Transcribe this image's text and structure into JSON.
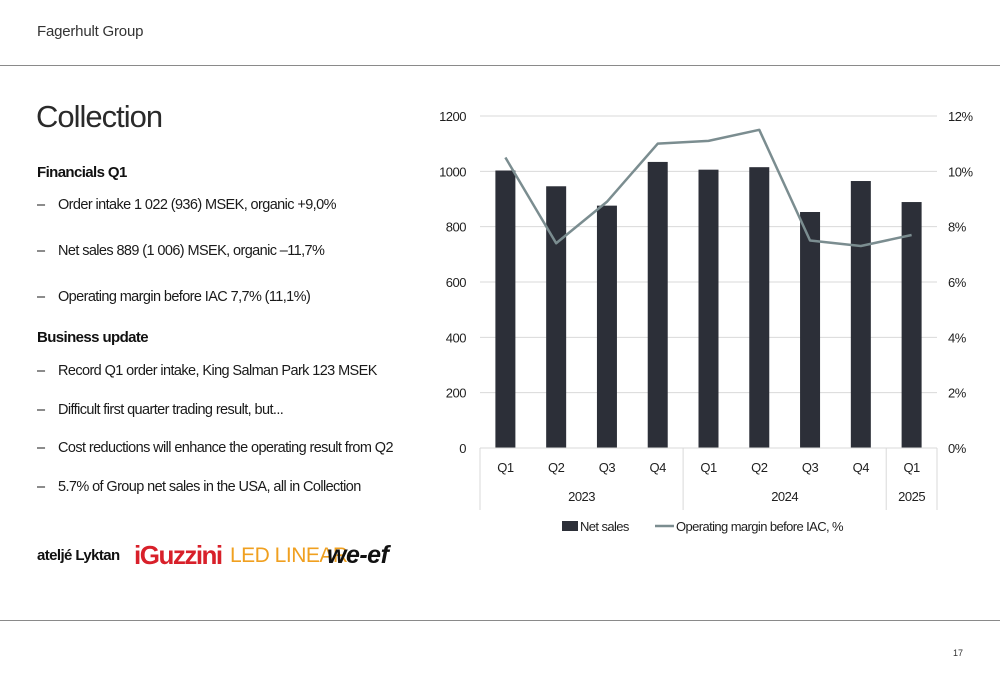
{
  "header": {
    "company": "Fagerhult Group"
  },
  "page_number": "17",
  "title": "Collection",
  "financials": {
    "heading": "Financials Q1",
    "items": [
      "Order intake 1 022 (936) MSEK, organic +9,0%",
      "Net sales 889 (1 006) MSEK, organic –11,7%",
      "Operating margin before IAC 7,7% (11,1%)"
    ]
  },
  "business_update": {
    "heading": "Business update",
    "items": [
      "Record Q1 order intake, King Salman Park 123 MSEK",
      "Difficult first quarter trading result, but...",
      "Cost reductions will enhance the operating result from Q2",
      "5.7% of Group net sales in the USA, all in Collection"
    ]
  },
  "bullet_dash": "–",
  "logos": {
    "lyktan": "ateljé Lyktan",
    "iguzzini": "iGuzzini",
    "ledlinear": "LED LINEAR",
    "weef": "we-ef"
  },
  "chart_data": {
    "type": "bar",
    "categories": [
      "Q1",
      "Q2",
      "Q3",
      "Q4",
      "Q1",
      "Q2",
      "Q3",
      "Q4",
      "Q1"
    ],
    "year_groups": [
      {
        "label": "2023",
        "span": 4
      },
      {
        "label": "2024",
        "span": 4
      },
      {
        "label": "2025",
        "span": 1
      }
    ],
    "series": [
      {
        "name": "Net sales",
        "type": "bar",
        "axis": "left",
        "color": "#2c2f38",
        "values": [
          1003,
          946,
          876,
          1034,
          1006,
          1015,
          853,
          965,
          889
        ]
      },
      {
        "name": "Operating margin before IAC, %",
        "type": "line",
        "axis": "right",
        "color": "#7b8d90",
        "values": [
          10.5,
          7.4,
          8.9,
          11.0,
          11.1,
          11.5,
          7.5,
          7.3,
          7.7
        ]
      }
    ],
    "y_left": {
      "min": 0,
      "max": 1200,
      "ticks": [
        0,
        200,
        400,
        600,
        800,
        1000,
        1200
      ]
    },
    "y_right": {
      "min": 0,
      "max": 12,
      "ticks": [
        "0%",
        "2%",
        "4%",
        "6%",
        "8%",
        "10%",
        "12%"
      ]
    },
    "grid": true,
    "legend_position": "bottom"
  }
}
